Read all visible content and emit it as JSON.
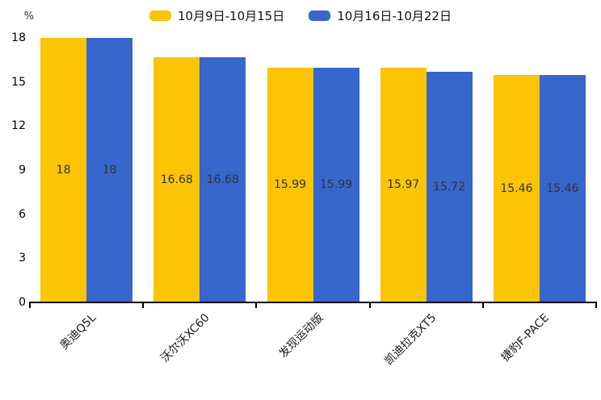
{
  "chart_data": {
    "type": "bar",
    "title": "",
    "ylabel": "%",
    "xlabel": "",
    "categories": [
      "奥迪Q5L",
      "沃尔沃XC60",
      "发现运动版",
      "凯迪拉克XT5",
      "捷豹F-PACE"
    ],
    "series": [
      {
        "name": "10月9日-10月15日",
        "color": "#FBC405",
        "values": [
          18,
          16.68,
          15.99,
          15.97,
          15.46
        ]
      },
      {
        "name": "10月16日-10月22日",
        "color": "#3766CC",
        "values": [
          18,
          16.68,
          15.99,
          15.72,
          15.46
        ]
      }
    ],
    "yticks": [
      0,
      3,
      6,
      9,
      12,
      15,
      18
    ],
    "ylim": [
      0,
      18
    ],
    "legend_position": "top",
    "grid": false,
    "bar_value_labels_shown": true,
    "value_label_color": "#333333",
    "axis_color": "#000000",
    "background_color": "#ffffff"
  }
}
